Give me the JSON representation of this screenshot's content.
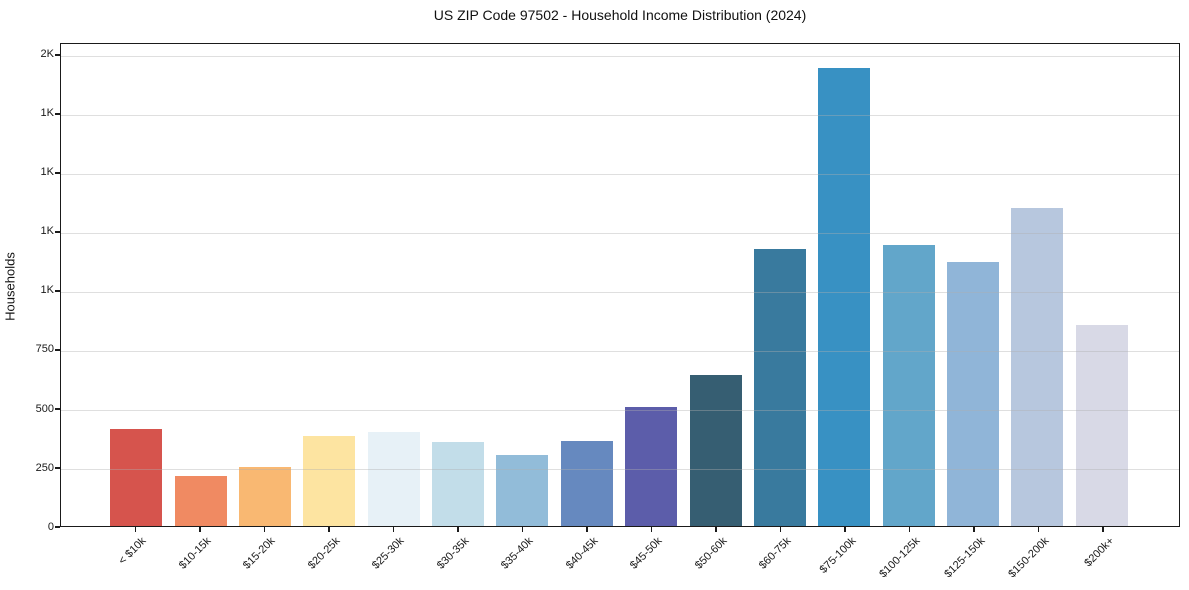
{
  "figure": {
    "background": "#ffffff",
    "spine_color": "#1a1a1a",
    "grid_color": "rgba(176,176,176,0.4)"
  },
  "chart_data": {
    "type": "bar",
    "title": "US ZIP Code 97502 - Household Income Distribution (2024)",
    "xlabel": "",
    "ylabel": "Households",
    "ylim": [
      0,
      2050
    ],
    "grid": "horizontal-only",
    "legend_position": "none",
    "x_tick_rotation": 45,
    "y_ticks": [
      {
        "value": 0,
        "label": "0"
      },
      {
        "value": 250,
        "label": "250"
      },
      {
        "value": 500,
        "label": "500"
      },
      {
        "value": 750,
        "label": "750"
      },
      {
        "value": 1000,
        "label": "1K"
      },
      {
        "value": 1250,
        "label": "1K"
      },
      {
        "value": 1500,
        "label": "1K"
      },
      {
        "value": 1750,
        "label": "1K"
      },
      {
        "value": 2000,
        "label": "2K"
      }
    ],
    "categories": [
      "< $10k",
      "$10-15k",
      "$15-20k",
      "$20-25k",
      "$25-30k",
      "$30-35k",
      "$35-40k",
      "$40-45k",
      "$45-50k",
      "$50-60k",
      "$60-75k",
      "$75-100k",
      "$100-125k",
      "$125-150k",
      "$150-200k",
      "$200k+"
    ],
    "values": [
      410,
      210,
      250,
      380,
      400,
      355,
      300,
      360,
      505,
      640,
      1175,
      1940,
      1190,
      1120,
      1345,
      850
    ],
    "bar_colors": [
      "#d6544d",
      "#f08a62",
      "#f9b872",
      "#fde4a1",
      "#e7f1f7",
      "#c2dde9",
      "#92bcd9",
      "#6689bf",
      "#5c5daa",
      "#365e72",
      "#397a9e",
      "#3891c3",
      "#62a6ca",
      "#90b5d8",
      "#b7c7de",
      "#d8d9e6"
    ]
  }
}
